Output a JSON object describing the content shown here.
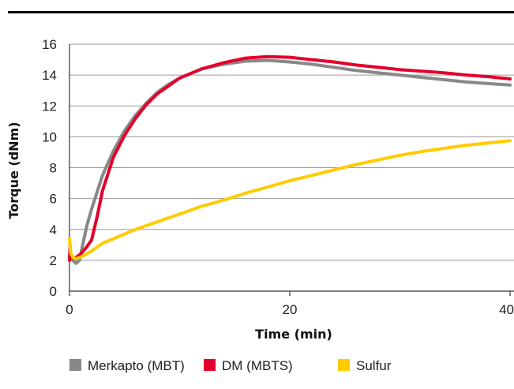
{
  "chart_data": {
    "type": "line",
    "title": "",
    "xlabel": "Time (min)",
    "ylabel": "Torque (dNm)",
    "xlim": [
      0,
      40
    ],
    "ylim": [
      0,
      16
    ],
    "x_ticks": [
      "0",
      "20",
      "40"
    ],
    "y_ticks": [
      "0",
      "2",
      "4",
      "6",
      "8",
      "10",
      "12",
      "14",
      "16"
    ],
    "grid": "horizontal",
    "legend_position": "bottom",
    "series": [
      {
        "name": "Merkapto (MBT)",
        "color": "#888888",
        "points": [
          [
            0,
            2.2
          ],
          [
            0.3,
            2.0
          ],
          [
            0.6,
            1.8
          ],
          [
            0.9,
            2.0
          ],
          [
            1.2,
            3.0
          ],
          [
            1.6,
            4.3
          ],
          [
            2,
            5.3
          ],
          [
            3,
            7.5
          ],
          [
            4,
            9.1
          ],
          [
            5,
            10.4
          ],
          [
            6,
            11.4
          ],
          [
            7,
            12.2
          ],
          [
            8,
            12.9
          ],
          [
            9,
            13.4
          ],
          [
            10,
            13.8
          ],
          [
            11,
            14.1
          ],
          [
            12,
            14.4
          ],
          [
            14,
            14.7
          ],
          [
            16,
            14.9
          ],
          [
            18,
            14.95
          ],
          [
            20,
            14.85
          ],
          [
            22,
            14.7
          ],
          [
            24,
            14.5
          ],
          [
            26,
            14.3
          ],
          [
            28,
            14.15
          ],
          [
            30,
            14.0
          ],
          [
            32,
            13.85
          ],
          [
            34,
            13.7
          ],
          [
            36,
            13.55
          ],
          [
            38,
            13.45
          ],
          [
            40,
            13.35
          ]
        ]
      },
      {
        "name": "DM (MBTS)",
        "color": "#e4002b",
        "points": [
          [
            0,
            2.0
          ],
          [
            0.05,
            3.0
          ],
          [
            0.1,
            2.2
          ],
          [
            0.5,
            2.15
          ],
          [
            1,
            2.4
          ],
          [
            1.5,
            2.8
          ],
          [
            2,
            3.3
          ],
          [
            2.5,
            4.8
          ],
          [
            3,
            6.5
          ],
          [
            4,
            8.7
          ],
          [
            5,
            10.1
          ],
          [
            6,
            11.2
          ],
          [
            7,
            12.1
          ],
          [
            8,
            12.8
          ],
          [
            9,
            13.3
          ],
          [
            10,
            13.8
          ],
          [
            11,
            14.1
          ],
          [
            12,
            14.4
          ],
          [
            14,
            14.8
          ],
          [
            16,
            15.1
          ],
          [
            18,
            15.2
          ],
          [
            20,
            15.15
          ],
          [
            22,
            15.0
          ],
          [
            24,
            14.85
          ],
          [
            26,
            14.65
          ],
          [
            28,
            14.5
          ],
          [
            30,
            14.35
          ],
          [
            32,
            14.25
          ],
          [
            34,
            14.15
          ],
          [
            36,
            14.0
          ],
          [
            38,
            13.9
          ],
          [
            40,
            13.75
          ]
        ]
      },
      {
        "name": "Sulfur",
        "color": "#ffcc00",
        "points": [
          [
            0,
            3.4
          ],
          [
            0.1,
            2.5
          ],
          [
            0.3,
            2.2
          ],
          [
            0.6,
            2.1
          ],
          [
            1,
            2.2
          ],
          [
            2,
            2.6
          ],
          [
            3,
            3.1
          ],
          [
            4,
            3.4
          ],
          [
            5,
            3.7
          ],
          [
            6,
            4.0
          ],
          [
            8,
            4.5
          ],
          [
            10,
            5.0
          ],
          [
            12,
            5.5
          ],
          [
            14,
            5.9
          ],
          [
            16,
            6.35
          ],
          [
            18,
            6.75
          ],
          [
            20,
            7.15
          ],
          [
            22,
            7.5
          ],
          [
            24,
            7.85
          ],
          [
            26,
            8.2
          ],
          [
            28,
            8.5
          ],
          [
            30,
            8.8
          ],
          [
            32,
            9.05
          ],
          [
            34,
            9.25
          ],
          [
            36,
            9.45
          ],
          [
            38,
            9.6
          ],
          [
            40,
            9.75
          ]
        ]
      }
    ]
  }
}
